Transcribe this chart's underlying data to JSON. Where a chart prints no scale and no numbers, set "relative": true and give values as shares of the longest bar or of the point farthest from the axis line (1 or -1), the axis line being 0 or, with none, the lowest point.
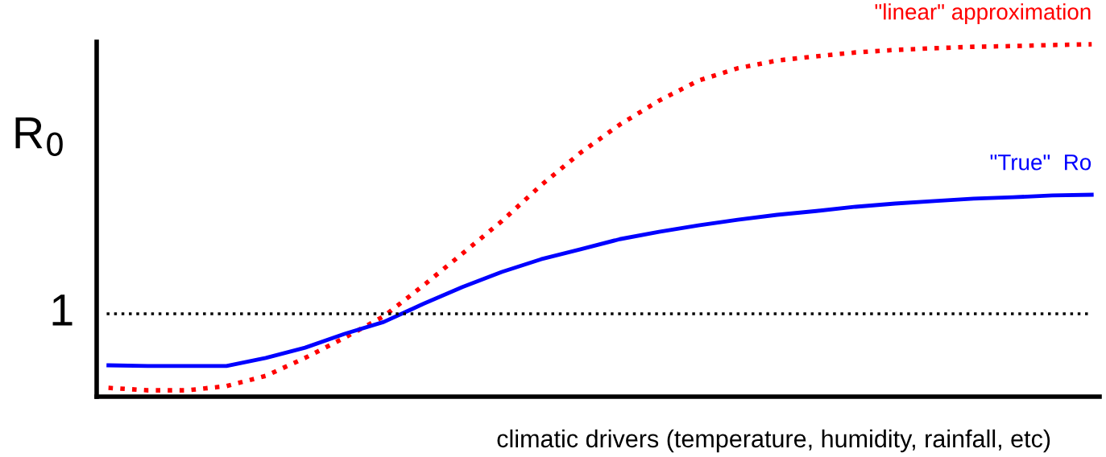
{
  "chart_data": {
    "type": "line",
    "relative": true,
    "xlabel": "climatic drivers (temperature, humidity, rainfall, etc)",
    "ylabel": "R$_{0}$",
    "categories": [
      null,
      null,
      null,
      null,
      null,
      null,
      null,
      null,
      null,
      null,
      null,
      null,
      null,
      null,
      null,
      null,
      null,
      null,
      null,
      null,
      null,
      null,
      null,
      null,
      null,
      null
    ],
    "series": [
      {
        "name": "\"linear\" approximation",
        "color": "#ff0000",
        "line_style": "dotted",
        "values": [
          0.025,
          0.018,
          0.018,
          0.03,
          0.059,
          0.11,
          0.167,
          0.228,
          0.315,
          0.406,
          0.498,
          0.6,
          0.692,
          0.772,
          0.84,
          0.897,
          0.932,
          0.954,
          0.966,
          0.977,
          0.984,
          0.989,
          0.993,
          0.995,
          0.998,
          1.0
        ]
      },
      {
        "name": "\"True\"  Ro",
        "color": "#0000ff",
        "line_style": "solid",
        "values": [
          0.089,
          0.087,
          0.087,
          0.087,
          0.11,
          0.139,
          0.178,
          0.212,
          0.263,
          0.311,
          0.354,
          0.39,
          0.418,
          0.447,
          0.468,
          0.486,
          0.502,
          0.516,
          0.527,
          0.539,
          0.548,
          0.555,
          0.562,
          0.566,
          0.571,
          0.573
        ]
      }
    ],
    "ref_lines": [
      {
        "axis": "y",
        "value": 0.235,
        "color": "#000000",
        "line_style": "dotted"
      }
    ],
    "annotations": [
      "1"
    ],
    "marker": "none"
  }
}
